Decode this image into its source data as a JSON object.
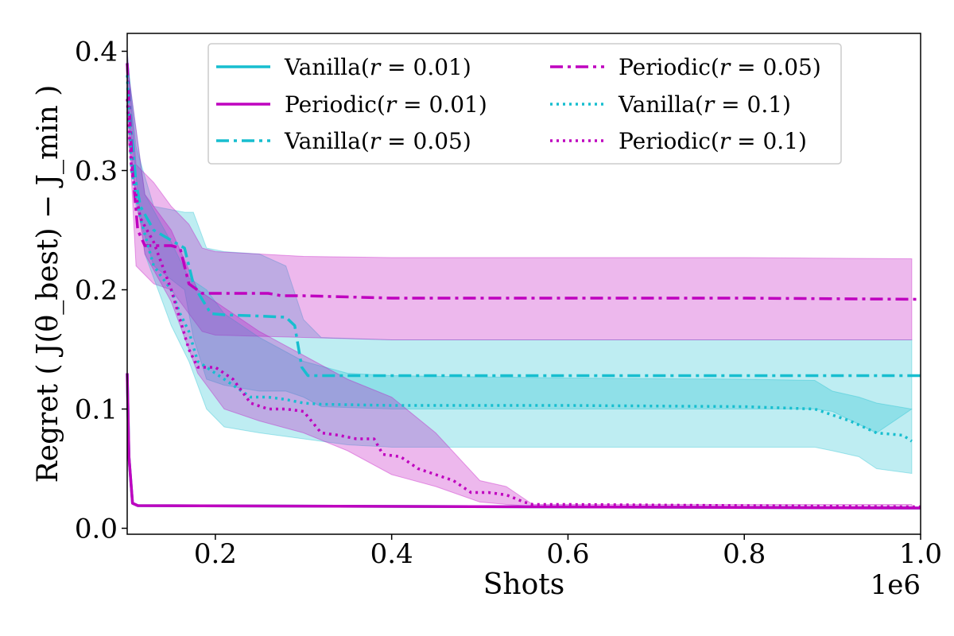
{
  "chart_data": {
    "type": "line",
    "xlabel": "Shots",
    "ylabel": "Regret ( J(θ_best) − J_min )",
    "xlim": [
      100000,
      1000000
    ],
    "ylim": [
      -0.005,
      0.415
    ],
    "x_offset_label": "1e6",
    "x_ticks": [
      {
        "value": 200000,
        "label": "0.2"
      },
      {
        "value": 400000,
        "label": "0.4"
      },
      {
        "value": 600000,
        "label": "0.6"
      },
      {
        "value": 800000,
        "label": "0.8"
      },
      {
        "value": 1000000,
        "label": "1.0"
      }
    ],
    "y_ticks": [
      {
        "value": 0.0,
        "label": "0.0"
      },
      {
        "value": 0.1,
        "label": "0.1"
      },
      {
        "value": 0.2,
        "label": "0.2"
      },
      {
        "value": 0.3,
        "label": "0.3"
      },
      {
        "value": 0.4,
        "label": "0.4"
      }
    ],
    "legend": {
      "position": "upper-center",
      "columns": 2,
      "entries": [
        {
          "prefix": "Vanilla(",
          "var": "r",
          "value": "0.01",
          "series": 0
        },
        {
          "prefix": "Periodic(",
          "var": "r",
          "value": "0.01",
          "series": 1
        },
        {
          "prefix": "Vanilla(",
          "var": "r",
          "value": "0.05",
          "series": 2
        },
        {
          "prefix": "Periodic(",
          "var": "r",
          "value": "0.05",
          "series": 3
        },
        {
          "prefix": "Vanilla(",
          "var": "r",
          "value": "0.1",
          "series": 4
        },
        {
          "prefix": "Periodic(",
          "var": "r",
          "value": "0.1",
          "series": 5
        }
      ]
    },
    "series": [
      {
        "name": "Vanilla(r=0.01)",
        "color": "#17becf",
        "style": "solid",
        "x": [
          100000,
          102000,
          106000,
          112000,
          1000000
        ],
        "y": [
          0.13,
          0.06,
          0.021,
          0.019,
          0.017
        ],
        "band": null
      },
      {
        "name": "Periodic(r=0.01)",
        "color": "#bf00bf",
        "style": "solid",
        "x": [
          100000,
          102000,
          106000,
          112000,
          1000000
        ],
        "y": [
          0.13,
          0.06,
          0.021,
          0.019,
          0.017
        ],
        "band": null
      },
      {
        "name": "Vanilla(r=0.05)",
        "color": "#17becf",
        "style": "dashdot",
        "x": [
          100000,
          105000,
          110000,
          115000,
          130000,
          165000,
          175000,
          180000,
          195000,
          210000,
          250000,
          280000,
          290000,
          298000,
          305000,
          400000,
          600000,
          800000,
          1000000
        ],
        "y": [
          0.39,
          0.33,
          0.29,
          0.27,
          0.25,
          0.235,
          0.205,
          0.198,
          0.18,
          0.179,
          0.178,
          0.177,
          0.17,
          0.135,
          0.128,
          0.128,
          0.128,
          0.128,
          0.128
        ],
        "band": {
          "x": [
            100000,
            110000,
            130000,
            165000,
            175000,
            190000,
            210000,
            250000,
            280000,
            300000,
            320000,
            400000,
            600000,
            800000,
            880000,
            900000,
            950000,
            990000
          ],
          "upper": [
            0.4,
            0.32,
            0.27,
            0.265,
            0.265,
            0.235,
            0.232,
            0.23,
            0.22,
            0.175,
            0.16,
            0.158,
            0.158,
            0.158,
            0.158,
            0.158,
            0.158,
            0.158
          ],
          "lower": [
            0.36,
            0.27,
            0.22,
            0.2,
            0.16,
            0.125,
            0.12,
            0.115,
            0.115,
            0.11,
            0.102,
            0.1,
            0.1,
            0.1,
            0.1,
            0.098,
            0.08,
            0.1
          ]
        }
      },
      {
        "name": "Periodic(r=0.05)",
        "color": "#bf00bf",
        "style": "dashdot",
        "x": [
          100000,
          106000,
          112000,
          120000,
          150000,
          160000,
          170000,
          185000,
          200000,
          260000,
          275000,
          300000,
          400000,
          600000,
          800000,
          1000000
        ],
        "y": [
          0.39,
          0.3,
          0.25,
          0.237,
          0.237,
          0.235,
          0.205,
          0.197,
          0.197,
          0.197,
          0.195,
          0.195,
          0.193,
          0.193,
          0.193,
          0.192
        ],
        "band": {
          "x": [
            100000,
            110000,
            130000,
            150000,
            170000,
            185000,
            200000,
            300000,
            400000,
            600000,
            800000,
            990000
          ],
          "upper": [
            0.4,
            0.305,
            0.29,
            0.27,
            0.255,
            0.235,
            0.232,
            0.228,
            0.227,
            0.227,
            0.227,
            0.226
          ],
          "lower": [
            0.36,
            0.22,
            0.205,
            0.2,
            0.18,
            0.165,
            0.162,
            0.16,
            0.158,
            0.158,
            0.158,
            0.158
          ]
        }
      },
      {
        "name": "Vanilla(r=0.1)",
        "color": "#17becf",
        "style": "dotted",
        "x": [
          100000,
          105000,
          115000,
          130000,
          150000,
          160000,
          170000,
          180000,
          200000,
          220000,
          240000,
          260000,
          280000,
          300000,
          320000,
          400000,
          500000,
          600000,
          800000,
          880000,
          900000,
          920000,
          950000,
          980000,
          990000
        ],
        "y": [
          0.38,
          0.3,
          0.26,
          0.22,
          0.2,
          0.18,
          0.165,
          0.14,
          0.13,
          0.12,
          0.11,
          0.11,
          0.108,
          0.105,
          0.104,
          0.103,
          0.103,
          0.103,
          0.102,
          0.1,
          0.095,
          0.09,
          0.08,
          0.078,
          0.073
        ],
        "band": {
          "x": [
            100000,
            120000,
            150000,
            170000,
            190000,
            210000,
            250000,
            300000,
            350000,
            400000,
            600000,
            800000,
            880000,
            900000,
            930000,
            950000,
            990000
          ],
          "upper": [
            0.39,
            0.28,
            0.24,
            0.21,
            0.2,
            0.18,
            0.16,
            0.14,
            0.13,
            0.128,
            0.126,
            0.125,
            0.124,
            0.115,
            0.11,
            0.105,
            0.1
          ],
          "lower": [
            0.36,
            0.23,
            0.17,
            0.14,
            0.1,
            0.085,
            0.08,
            0.075,
            0.07,
            0.068,
            0.068,
            0.068,
            0.068,
            0.065,
            0.06,
            0.05,
            0.046
          ]
        }
      },
      {
        "name": "Periodic(r=0.1)",
        "color": "#bf00bf",
        "style": "dotted",
        "x": [
          100000,
          105000,
          115000,
          130000,
          150000,
          170000,
          180000,
          200000,
          220000,
          240000,
          260000,
          280000,
          300000,
          320000,
          340000,
          360000,
          380000,
          390000,
          410000,
          430000,
          450000,
          470000,
          490000,
          510000,
          530000,
          550000,
          560000,
          600000,
          800000,
          1000000
        ],
        "y": [
          0.36,
          0.3,
          0.26,
          0.24,
          0.2,
          0.15,
          0.135,
          0.135,
          0.125,
          0.105,
          0.1,
          0.1,
          0.098,
          0.08,
          0.078,
          0.075,
          0.075,
          0.062,
          0.06,
          0.05,
          0.045,
          0.04,
          0.03,
          0.03,
          0.028,
          0.022,
          0.02,
          0.02,
          0.019,
          0.018
        ],
        "band": {
          "x": [
            100000,
            120000,
            150000,
            180000,
            210000,
            250000,
            300000,
            350000,
            400000,
            450000,
            500000,
            530000,
            550000,
            560000,
            600000,
            990000
          ],
          "upper": [
            0.39,
            0.28,
            0.25,
            0.2,
            0.185,
            0.165,
            0.145,
            0.125,
            0.11,
            0.08,
            0.04,
            0.035,
            0.025,
            0.02,
            0.02,
            0.02
          ],
          "lower": [
            0.33,
            0.23,
            0.19,
            0.13,
            0.1,
            0.09,
            0.08,
            0.065,
            0.045,
            0.035,
            0.022,
            0.02,
            0.019,
            0.018,
            0.018,
            0.018
          ]
        }
      }
    ]
  }
}
